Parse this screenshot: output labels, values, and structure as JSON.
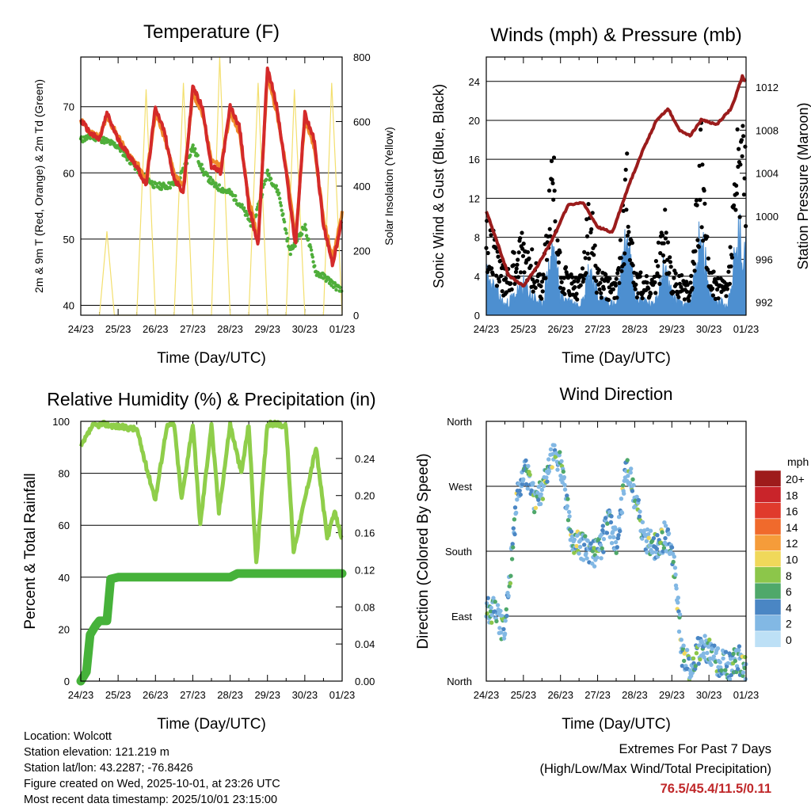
{
  "chart_data": [
    {
      "type": "line",
      "title": "Temperature (F)",
      "xlabel": "Time (Day/UTC)",
      "ylabel": "2m & 9m T (Red, Orange) & 2m Td (Green)",
      "y2label": "Solar Insolation (Yellow)",
      "x_ticks": [
        "24/23",
        "25/23",
        "26/23",
        "27/23",
        "28/23",
        "29/23",
        "30/23",
        "01/23"
      ],
      "ylim": [
        38.5,
        77.5
      ],
      "y_ticks": [
        40,
        50,
        60,
        70
      ],
      "y2lim": [
        0,
        800
      ],
      "y2_ticks": [
        0,
        200,
        400,
        600,
        800
      ],
      "series": [
        {
          "name": "2m T",
          "color": "#d42a2a",
          "axis": "left",
          "x": [
            0,
            0.25,
            0.5,
            0.7,
            1,
            1.25,
            1.5,
            1.75,
            2,
            2.25,
            2.5,
            2.75,
            3,
            3.25,
            3.5,
            3.75,
            4,
            4.25,
            4.5,
            4.75,
            5,
            5.25,
            5.5,
            5.75,
            6,
            6.25,
            6.5,
            6.75,
            7
          ],
          "values": [
            68,
            66,
            65,
            69,
            65,
            63,
            61,
            58,
            70,
            66,
            59,
            57,
            73,
            70,
            61,
            60,
            70,
            67,
            55,
            49,
            76,
            70,
            60,
            49,
            69,
            65,
            52,
            46,
            53
          ]
        },
        {
          "name": "9m T",
          "color": "#f08a28",
          "axis": "left",
          "x": [
            0,
            0.25,
            0.5,
            0.7,
            1,
            1.25,
            1.5,
            1.75,
            2,
            2.25,
            2.5,
            2.75,
            3,
            3.25,
            3.5,
            3.75,
            4,
            4.25,
            4.5,
            4.75,
            5,
            5.25,
            5.5,
            5.75,
            6,
            6.25,
            6.5,
            6.75,
            7
          ],
          "values": [
            68,
            66,
            65.5,
            68.5,
            65.5,
            63,
            61.5,
            59,
            69,
            65,
            60,
            58,
            72,
            69,
            62,
            61,
            69,
            66,
            56,
            50,
            75,
            69,
            61,
            50,
            68,
            64,
            53,
            47,
            54
          ]
        },
        {
          "name": "2m Td",
          "color": "#4fae3a",
          "axis": "left",
          "x": [
            0,
            0.3,
            0.6,
            1,
            1.3,
            1.6,
            2,
            2.3,
            2.6,
            3,
            3.3,
            3.6,
            4,
            4.3,
            4.6,
            5,
            5.3,
            5.6,
            6,
            6.3,
            6.6,
            7
          ],
          "values": [
            65,
            65.5,
            65,
            64,
            62,
            60,
            58,
            58,
            58.5,
            64,
            60,
            58,
            57,
            55,
            52,
            60,
            57,
            48,
            52,
            45,
            44,
            42
          ]
        },
        {
          "name": "Solar Insolation",
          "color": "#f3df6e",
          "axis": "right",
          "x": [
            0.5,
            0.7,
            0.9,
            1.5,
            1.75,
            2.0,
            2.5,
            2.75,
            3.0,
            3.5,
            3.72,
            4.0,
            4.5,
            4.75,
            5.0,
            5.5,
            5.72,
            6.0,
            6.5,
            6.72,
            7.0
          ],
          "values": [
            0,
            260,
            0,
            0,
            700,
            0,
            0,
            720,
            0,
            0,
            800,
            0,
            0,
            720,
            0,
            0,
            700,
            0,
            0,
            720,
            0
          ]
        }
      ]
    },
    {
      "type": "scatter",
      "title": "Winds (mph) & Pressure (mb)",
      "xlabel": "Time (Day/UTC)",
      "ylabel": "Sonic Wind & Gust (Blue, Black)",
      "y2label": "Station Pressure (Maroon)",
      "x_ticks": [
        "24/23",
        "25/23",
        "26/23",
        "27/23",
        "28/23",
        "29/23",
        "30/23",
        "01/23"
      ],
      "ylim": [
        0,
        26.5
      ],
      "y_ticks": [
        0,
        4,
        8,
        12,
        16,
        20,
        24
      ],
      "y2lim": [
        990.8,
        1014.8
      ],
      "y2_ticks": [
        992,
        996,
        1000,
        1004,
        1008,
        1012
      ],
      "series": [
        {
          "name": "Gust",
          "color": "#000000",
          "axis": "left",
          "x": [
            0,
            0.5,
            1,
            1.5,
            1.8,
            2,
            2.5,
            2.8,
            3,
            3.5,
            3.8,
            4,
            4.5,
            4.8,
            5,
            5.5,
            5.8,
            6,
            6.5,
            6.8,
            7
          ],
          "values": [
            10,
            4,
            8,
            3,
            16,
            5,
            3,
            11,
            4,
            3,
            15,
            4,
            3,
            10,
            4,
            3,
            18,
            4,
            3,
            19,
            14
          ]
        },
        {
          "name": "Wind",
          "color": "#4d8fd0",
          "axis": "left",
          "x": [
            0,
            0.5,
            1,
            1.5,
            1.8,
            2,
            2.5,
            2.8,
            3,
            3.5,
            3.8,
            4,
            4.5,
            4.8,
            5,
            5.5,
            5.8,
            6,
            6.5,
            6.8,
            7
          ],
          "values": [
            4,
            1,
            3,
            1,
            7,
            2,
            1,
            5,
            2,
            1,
            8,
            2,
            1,
            5,
            2,
            1,
            9,
            2,
            1,
            8,
            6
          ]
        },
        {
          "name": "Pressure",
          "color": "#9b1c1c",
          "axis": "right",
          "x": [
            0,
            0.3,
            0.6,
            1,
            1.4,
            1.8,
            2.2,
            2.6,
            3,
            3.4,
            3.8,
            4.2,
            4.6,
            4.9,
            5.2,
            5.5,
            5.8,
            6.2,
            6.6,
            6.9,
            7
          ],
          "values": [
            1000.5,
            997.5,
            994.5,
            993.5,
            995.5,
            998,
            1001,
            1001.3,
            999,
            998.5,
            1002.5,
            1006,
            1009,
            1010,
            1008,
            1007.5,
            1009,
            1008.5,
            1010,
            1013,
            1012.5
          ]
        }
      ]
    },
    {
      "type": "line",
      "title": "Relative Humidity (%) & Precipitation (in)",
      "xlabel": "Time (Day/UTC)",
      "ylabel": "Percent & Total Rainfall",
      "x_ticks": [
        "24/23",
        "25/23",
        "26/23",
        "27/23",
        "28/23",
        "29/23",
        "30/23",
        "01/23"
      ],
      "ylim": [
        0,
        100
      ],
      "y_ticks": [
        0,
        20,
        40,
        60,
        80,
        100
      ],
      "y2lim": [
        0,
        0.28
      ],
      "y2_ticks": [
        "0.00",
        "0.04",
        "0.08",
        "0.12",
        "0.16",
        "0.20",
        "0.24"
      ],
      "series": [
        {
          "name": "Relative Humidity",
          "color": "#8fce4a",
          "axis": "left",
          "x": [
            0,
            0.3,
            0.6,
            1,
            1.5,
            1.8,
            2,
            2.3,
            2.5,
            2.7,
            3,
            3.2,
            3.5,
            3.7,
            4,
            4.3,
            4.5,
            4.7,
            5,
            5.3,
            5.5,
            5.7,
            6,
            6.3,
            6.6,
            6.8,
            7
          ],
          "values": [
            90,
            98,
            99,
            98,
            97,
            80,
            70,
            98,
            99,
            70,
            99,
            60,
            99,
            65,
            99,
            80,
            99,
            45,
            99,
            99,
            98,
            50,
            70,
            90,
            55,
            65,
            55
          ]
        },
        {
          "name": "Total Precipitation",
          "color": "#46b23a",
          "axis": "right",
          "x": [
            0,
            0.15,
            0.25,
            0.4,
            0.5,
            0.7,
            0.8,
            1.0,
            4.0,
            4.2,
            7.0
          ],
          "values": [
            0,
            0.01,
            0.05,
            0.06,
            0.065,
            0.065,
            0.11,
            0.112,
            0.112,
            0.116,
            0.116
          ]
        }
      ]
    },
    {
      "type": "scatter",
      "title": "Wind Direction",
      "xlabel": "Time (Day/UTC)",
      "ylabel": "Direction (Colored By Speed)",
      "x_ticks": [
        "24/23",
        "25/23",
        "26/23",
        "27/23",
        "28/23",
        "29/23",
        "30/23",
        "01/23"
      ],
      "ylim": [
        0,
        360
      ],
      "y_ticks": [
        "North",
        "East",
        "South",
        "West",
        "North"
      ],
      "legend": {
        "title": "mph",
        "labels": [
          "20+",
          "18",
          "16",
          "14",
          "12",
          "10",
          "8",
          "6",
          "4",
          "2",
          "0"
        ],
        "colors": [
          "#9e1b1b",
          "#c9242a",
          "#e03a2c",
          "#f06a2c",
          "#f59c3a",
          "#f0d85a",
          "#8cc64a",
          "#4fa86a",
          "#4a86c4",
          "#82b8e4",
          "#bde0f6"
        ]
      },
      "series": [
        {
          "name": "Direction",
          "color": "#4a86c4",
          "x": [
            0,
            0.2,
            0.5,
            0.8,
            1,
            1.3,
            1.5,
            1.8,
            2,
            2.3,
            2.5,
            2.8,
            3,
            3.3,
            3.5,
            3.8,
            4,
            4.3,
            4.5,
            4.8,
            5,
            5.3,
            5.5,
            5.8,
            6,
            6.3,
            6.6,
            6.8,
            7
          ],
          "values": [
            100,
            95,
            70,
            240,
            300,
            250,
            260,
            320,
            300,
            200,
            190,
            180,
            175,
            220,
            190,
            300,
            250,
            200,
            185,
            200,
            190,
            30,
            20,
            50,
            40,
            25,
            20,
            30,
            20
          ]
        }
      ]
    }
  ],
  "info": {
    "location": "Location: Wolcott",
    "elevation": "Station elevation: 121.219 m",
    "latlon": "Station lat/lon: 43.2287; -76.8426",
    "created": "Figure created on Wed, 2025-10-01, at 23:26 UTC",
    "recent": "Most recent data timestamp: 2025/10/01 23:15:00"
  },
  "extremes": {
    "heading": "Extremes For Past 7 Days",
    "subheading": "(High/Low/Max Wind/Total Precipitation)",
    "values": "76.5/45.4/11.5/0.11"
  }
}
